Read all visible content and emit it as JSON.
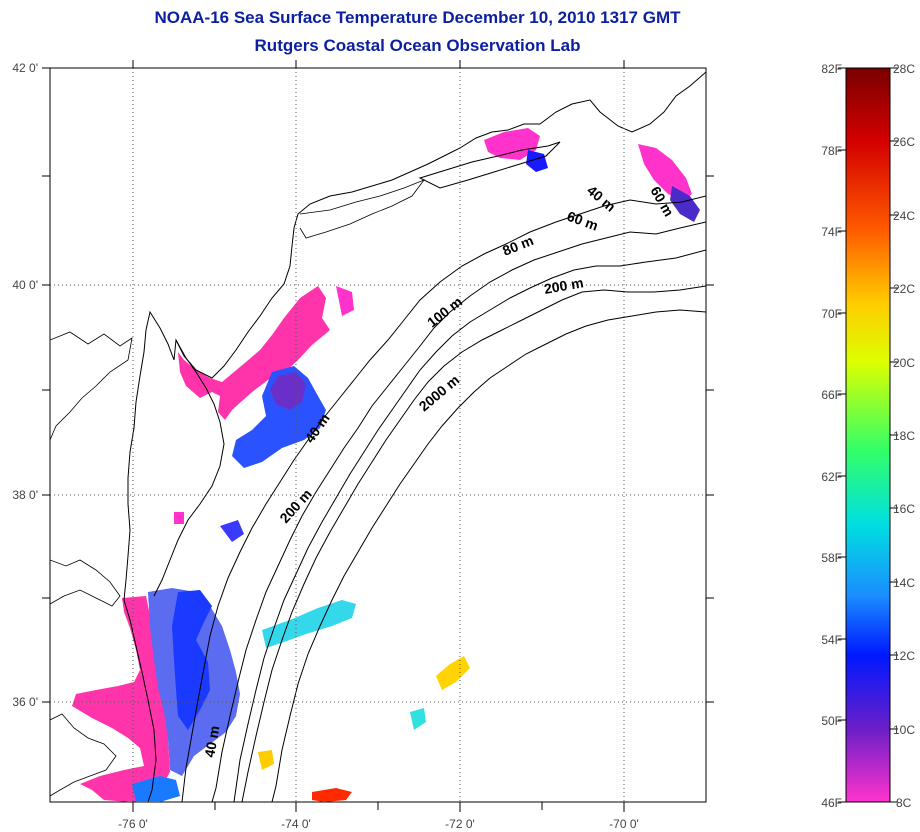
{
  "title": "NOAA-16 Sea Surface Temperature December 10, 2010 1317 GMT",
  "subtitle": "Rutgers Coastal Ocean Observation Lab",
  "map": {
    "lat_ticks": [
      "42 0'",
      "40 0'",
      "38 0'",
      "36 0'"
    ],
    "lon_ticks": [
      "-76 0'",
      "-74 0'",
      "-72 0'",
      "-70 0'"
    ],
    "grid": "dotted",
    "contours": [
      "40 m",
      "60 m",
      "60 m",
      "80 m",
      "100 m",
      "200 m",
      "200 m",
      "2000 m",
      "40 m",
      "40 m"
    ]
  },
  "colorbar": {
    "f_labels": [
      "82F",
      "78F",
      "74F",
      "70F",
      "66F",
      "62F",
      "58F",
      "54F",
      "50F",
      "46F"
    ],
    "c_labels": [
      "28C",
      "26C",
      "24C",
      "22C",
      "20C",
      "18C",
      "16C",
      "14C",
      "12C",
      "10C",
      "8C"
    ],
    "colors": [
      "#7a0000",
      "#d40000",
      "#ff5a00",
      "#ffcc00",
      "#ddff00",
      "#33ff66",
      "#00e0e0",
      "#1a8cff",
      "#0018ff",
      "#6a1fc8",
      "#ff33cc"
    ]
  }
}
